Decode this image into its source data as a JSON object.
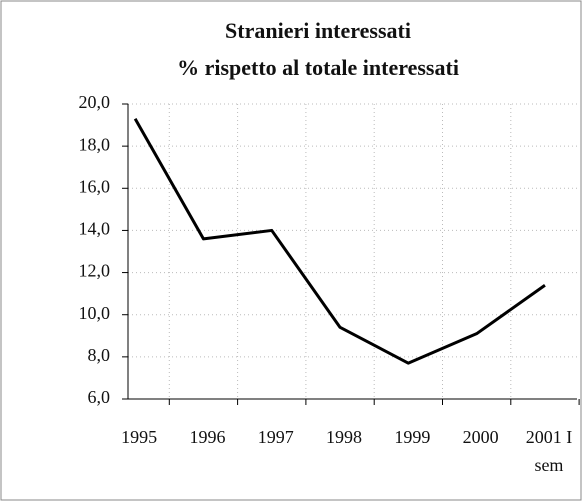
{
  "chart_data": {
    "type": "line",
    "title": "Stranieri interessati",
    "subtitle": "% rispetto al totale interessati",
    "categories": [
      "1995",
      "1996",
      "1997",
      "1998",
      "1999",
      "2000",
      "2001 I sem"
    ],
    "values": [
      19.3,
      13.6,
      14.0,
      9.4,
      7.7,
      9.1,
      11.4
    ],
    "color": "#000000",
    "ylim": [
      6,
      20
    ],
    "yticks": [
      {
        "value": 6,
        "label": "6,0"
      },
      {
        "value": 8,
        "label": "8,0"
      },
      {
        "value": 10,
        "label": "10,0"
      },
      {
        "value": 12,
        "label": "12,0"
      },
      {
        "value": 14,
        "label": "14,0"
      },
      {
        "value": 16,
        "label": "16,0"
      },
      {
        "value": 18,
        "label": "18,0"
      },
      {
        "value": 20,
        "label": "20,0"
      }
    ],
    "grid": true
  }
}
